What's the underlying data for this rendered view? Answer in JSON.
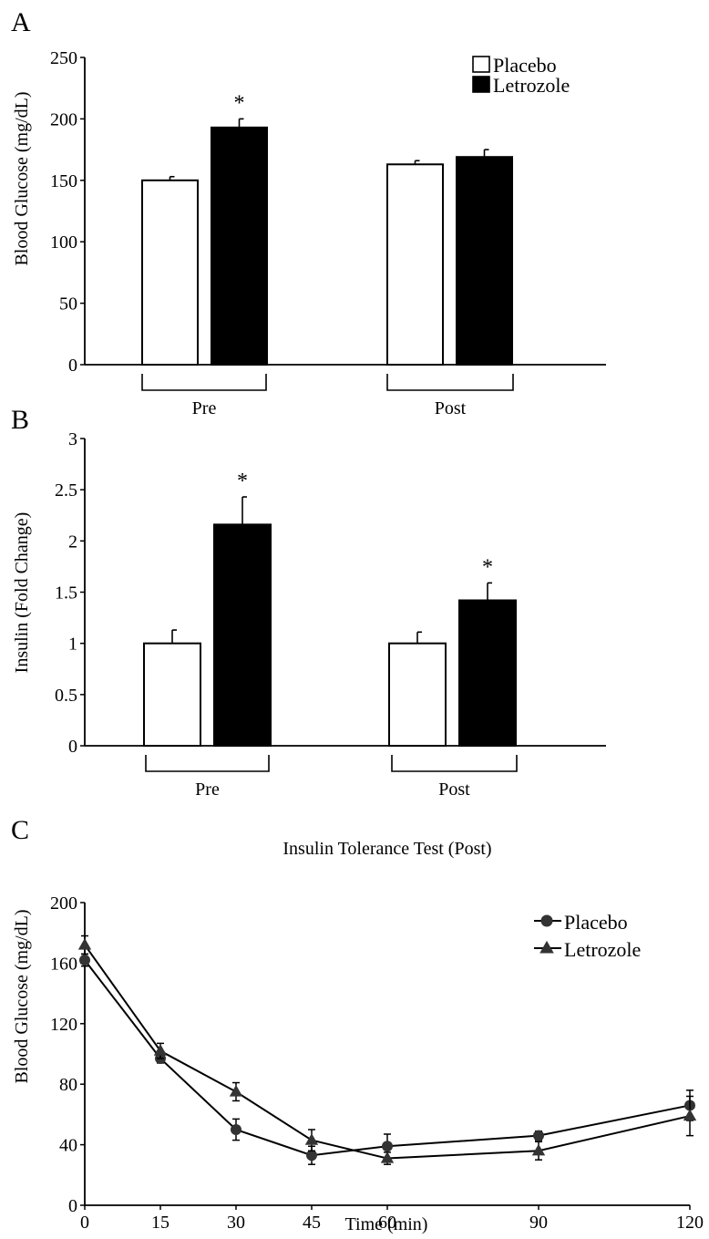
{
  "panels": {
    "a": {
      "letter": "A"
    },
    "b": {
      "letter": "B"
    },
    "c": {
      "letter": "C"
    }
  },
  "colors": {
    "placebo": "#ffffff",
    "letrozole": "#000000",
    "axis": "#000000",
    "marker": "#333333"
  },
  "chart_data": [
    {
      "type": "bar",
      "title": "",
      "xlabel": "",
      "ylabel": "Blood Glucose (mg/dL)",
      "categories": [
        "Pre",
        "Post"
      ],
      "ylim": [
        0,
        250
      ],
      "yticks": [
        "0",
        "50",
        "100",
        "150",
        "200",
        "250"
      ],
      "series": [
        {
          "name": "Placebo",
          "color": "#ffffff",
          "values": [
            150,
            163
          ],
          "error": [
            3,
            3
          ]
        },
        {
          "name": "Letrozole",
          "color": "#000000",
          "values": [
            193,
            169
          ],
          "error": [
            7,
            6
          ]
        }
      ],
      "significance": [
        {
          "category": "Pre",
          "series": "Letrozole",
          "label": "*"
        }
      ],
      "legend": {
        "position": "top-right"
      },
      "grid": false
    },
    {
      "type": "bar",
      "title": "",
      "xlabel": "",
      "ylabel": "Insulin (Fold Change)",
      "categories": [
        "Pre",
        "Post"
      ],
      "ylim": [
        0,
        3
      ],
      "yticks": [
        "0",
        "0.5",
        "1",
        "1.5",
        "2",
        "2.5",
        "3"
      ],
      "series": [
        {
          "name": "Placebo",
          "color": "#ffffff",
          "values": [
            1.0,
            1.0
          ],
          "error": [
            0.13,
            0.11
          ]
        },
        {
          "name": "Letrozole",
          "color": "#000000",
          "values": [
            2.16,
            1.42
          ],
          "error": [
            0.27,
            0.17
          ]
        }
      ],
      "significance": [
        {
          "category": "Pre",
          "series": "Letrozole",
          "label": "*"
        },
        {
          "category": "Post",
          "series": "Letrozole",
          "label": "*"
        }
      ],
      "grid": false
    },
    {
      "type": "line",
      "title": "Insulin Tolerance Test (Post)",
      "xlabel": "Time (min)",
      "ylabel": "Blood Glucose (mg/dL)",
      "x": [
        0,
        15,
        30,
        45,
        60,
        90,
        120
      ],
      "xlim": [
        0,
        120
      ],
      "ylim": [
        0,
        200
      ],
      "xticks": [
        "0",
        "15",
        "30",
        "45",
        "60",
        "90",
        "120"
      ],
      "yticks": [
        "0",
        "40",
        "80",
        "120",
        "160",
        "200"
      ],
      "series": [
        {
          "name": "Placebo",
          "marker": "circle",
          "values": [
            162,
            97,
            50,
            33,
            39,
            46,
            66
          ],
          "error": [
            4,
            3,
            7,
            6,
            8,
            3,
            10
          ]
        },
        {
          "name": "Letrozole",
          "marker": "triangle",
          "values": [
            172,
            102,
            75,
            43,
            31,
            36,
            59
          ],
          "error": [
            6,
            5,
            6,
            7,
            4,
            6,
            13
          ]
        }
      ],
      "legend": {
        "position": "top-right"
      },
      "grid": false
    }
  ]
}
